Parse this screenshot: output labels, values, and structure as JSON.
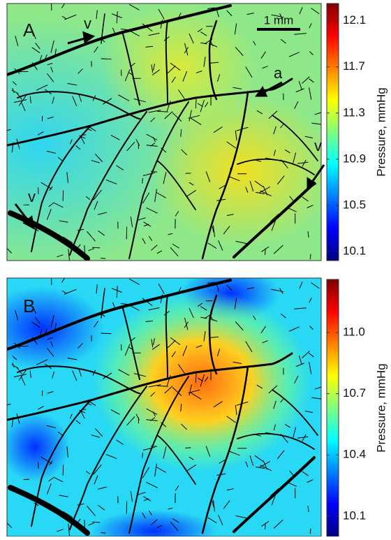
{
  "panels": [
    {
      "label": "A",
      "annotations": [
        "v",
        "a",
        "v",
        "v"
      ],
      "scale_bar": "1 mm",
      "colorbar": {
        "label": "Pressure, mmHg",
        "lim": [
          10.02,
          12.25
        ],
        "ticks": [
          12.1,
          11.7,
          11.3,
          10.9,
          10.5,
          10.1
        ]
      }
    },
    {
      "label": "B",
      "colorbar": {
        "label": "Pressure, mmHg",
        "lim": [
          10.0,
          11.26
        ],
        "ticks": [
          {
            "value": 11,
            "label": "11.0"
          },
          10.7,
          10.4,
          10.1
        ]
      }
    }
  ]
}
